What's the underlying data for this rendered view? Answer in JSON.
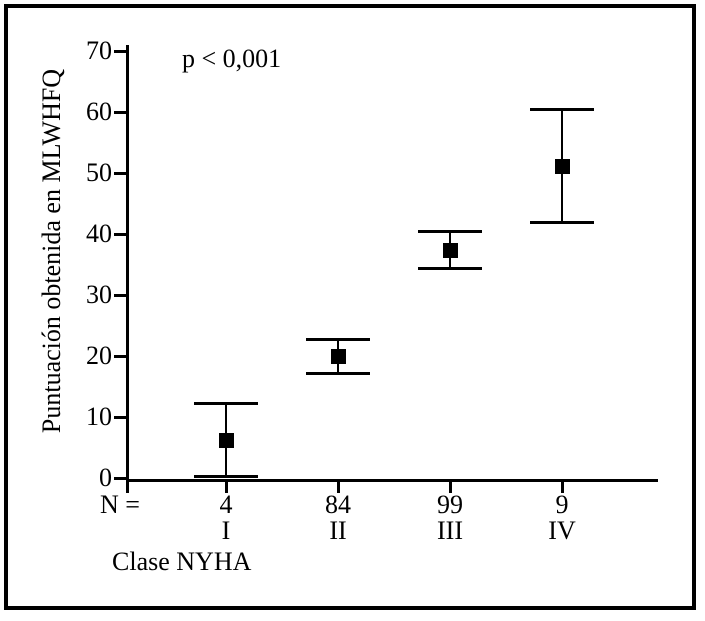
{
  "chart_data": {
    "type": "errorbar",
    "title": "",
    "annotation": "p < 0,001",
    "ylabel": "Puntuación obtenida en MLWHFQ",
    "xlabel": "Clase NYHA",
    "n_prefix": "N =",
    "ylim": [
      0,
      70
    ],
    "yticks": [
      0,
      10,
      20,
      30,
      40,
      50,
      60,
      70
    ],
    "grid": false,
    "legend": "none",
    "marker": "filled-square",
    "categories": [
      {
        "class": "I",
        "n": "4",
        "mean": 6.3,
        "lo": 0.3,
        "hi": 12.3
      },
      {
        "class": "II",
        "n": "84",
        "mean": 20.0,
        "lo": 17.2,
        "hi": 22.8
      },
      {
        "class": "III",
        "n": "99",
        "mean": 37.4,
        "lo": 34.4,
        "hi": 40.5
      },
      {
        "class": "IV",
        "n": "9",
        "mean": 51.1,
        "lo": 42.0,
        "hi": 60.5
      }
    ],
    "colors": {
      "foreground": "#000000",
      "background": "#ffffff"
    }
  }
}
